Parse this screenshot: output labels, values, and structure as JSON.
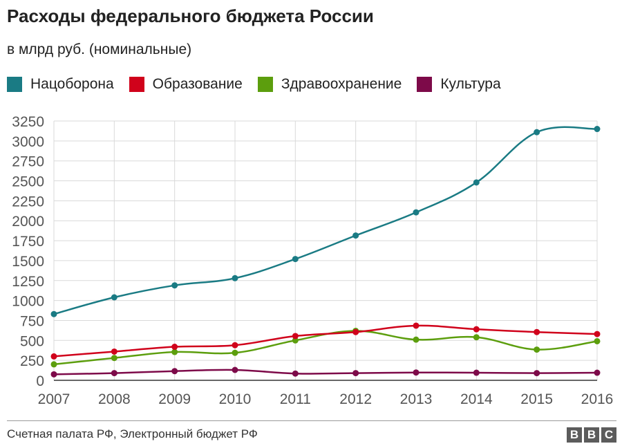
{
  "chart_data": {
    "type": "line",
    "title": "Расходы федерального бюджета России",
    "subtitle": "в млрд руб. (номинальные)",
    "xlabel": "",
    "ylabel": "",
    "categories": [
      "2007",
      "2008",
      "2009",
      "2010",
      "2011",
      "2012",
      "2013",
      "2014",
      "2015",
      "2016"
    ],
    "yticks": [
      "0",
      "250",
      "500",
      "750",
      "1000",
      "1250",
      "1500",
      "1750",
      "2000",
      "2250",
      "2500",
      "2750",
      "3000",
      "3250"
    ],
    "ylim": [
      0,
      3250
    ],
    "grid": true,
    "legend_position": "top-left",
    "series": [
      {
        "name": "Нацоборона",
        "color": "#1a7b84",
        "values": [
          830,
          1040,
          1190,
          1280,
          1520,
          1815,
          2105,
          2480,
          3110,
          3150
        ]
      },
      {
        "name": "Образование",
        "color": "#d0021b",
        "values": [
          300,
          360,
          420,
          440,
          555,
          605,
          685,
          640,
          605,
          580
        ]
      },
      {
        "name": "Здравоохранение",
        "color": "#5c9e0d",
        "values": [
          200,
          280,
          355,
          345,
          500,
          620,
          510,
          540,
          385,
          490
        ]
      },
      {
        "name": "Культура",
        "color": "#7d0a49",
        "values": [
          75,
          90,
          115,
          130,
          85,
          90,
          98,
          95,
          90,
          95
        ]
      }
    ]
  },
  "footer": {
    "source": "Счетная палата РФ, Электронный бюджет РФ",
    "logo_letters": [
      "B",
      "B",
      "C"
    ]
  }
}
